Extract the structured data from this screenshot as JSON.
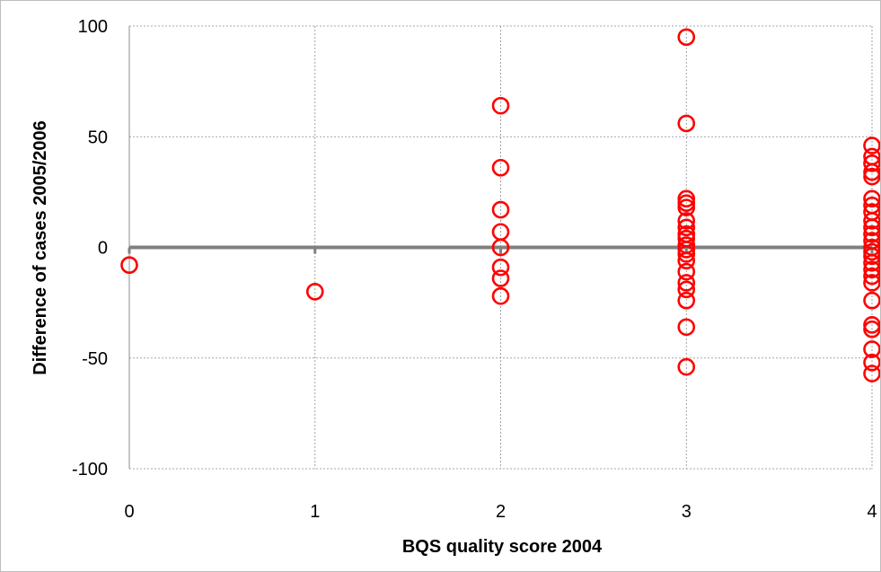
{
  "chart_data": {
    "type": "scatter",
    "title": "",
    "xlabel": "BQS quality score 2004",
    "ylabel": "Difference of cases 2005/2006",
    "xlim": [
      0,
      4
    ],
    "ylim": [
      -100,
      100
    ],
    "xticks": [
      0,
      1,
      2,
      3,
      4
    ],
    "yticks": [
      -100,
      -50,
      0,
      50,
      100
    ],
    "grid": true,
    "legend": "none",
    "marker": "open-circle",
    "marker_color": "#ff0000",
    "zero_line_color": "#808080",
    "points": [
      {
        "x": 0,
        "y": -8
      },
      {
        "x": 1,
        "y": -20
      },
      {
        "x": 2,
        "y": 64
      },
      {
        "x": 2,
        "y": 36
      },
      {
        "x": 2,
        "y": 17
      },
      {
        "x": 2,
        "y": 7
      },
      {
        "x": 2,
        "y": 0
      },
      {
        "x": 2,
        "y": -9
      },
      {
        "x": 2,
        "y": -14
      },
      {
        "x": 2,
        "y": -22
      },
      {
        "x": 3,
        "y": 95
      },
      {
        "x": 3,
        "y": 56
      },
      {
        "x": 3,
        "y": 22
      },
      {
        "x": 3,
        "y": 20
      },
      {
        "x": 3,
        "y": 18
      },
      {
        "x": 3,
        "y": 12
      },
      {
        "x": 3,
        "y": 9
      },
      {
        "x": 3,
        "y": 6
      },
      {
        "x": 3,
        "y": 4
      },
      {
        "x": 3,
        "y": 1
      },
      {
        "x": 3,
        "y": -1
      },
      {
        "x": 3,
        "y": -3
      },
      {
        "x": 3,
        "y": -6
      },
      {
        "x": 3,
        "y": -11
      },
      {
        "x": 3,
        "y": -16
      },
      {
        "x": 3,
        "y": -19
      },
      {
        "x": 3,
        "y": -24
      },
      {
        "x": 3,
        "y": -36
      },
      {
        "x": 3,
        "y": -54
      },
      {
        "x": 4,
        "y": 46
      },
      {
        "x": 4,
        "y": 41
      },
      {
        "x": 4,
        "y": 38
      },
      {
        "x": 4,
        "y": 34
      },
      {
        "x": 4,
        "y": 32
      },
      {
        "x": 4,
        "y": 22
      },
      {
        "x": 4,
        "y": 19
      },
      {
        "x": 4,
        "y": 16
      },
      {
        "x": 4,
        "y": 12
      },
      {
        "x": 4,
        "y": 9
      },
      {
        "x": 4,
        "y": 6
      },
      {
        "x": 4,
        "y": 3
      },
      {
        "x": 4,
        "y": 0
      },
      {
        "x": 4,
        "y": -2
      },
      {
        "x": 4,
        "y": -4
      },
      {
        "x": 4,
        "y": -7
      },
      {
        "x": 4,
        "y": -10
      },
      {
        "x": 4,
        "y": -13
      },
      {
        "x": 4,
        "y": -16
      },
      {
        "x": 4,
        "y": -24
      },
      {
        "x": 4,
        "y": -35
      },
      {
        "x": 4,
        "y": -37
      },
      {
        "x": 4,
        "y": -46
      },
      {
        "x": 4,
        "y": -52
      },
      {
        "x": 4,
        "y": -57
      }
    ]
  }
}
